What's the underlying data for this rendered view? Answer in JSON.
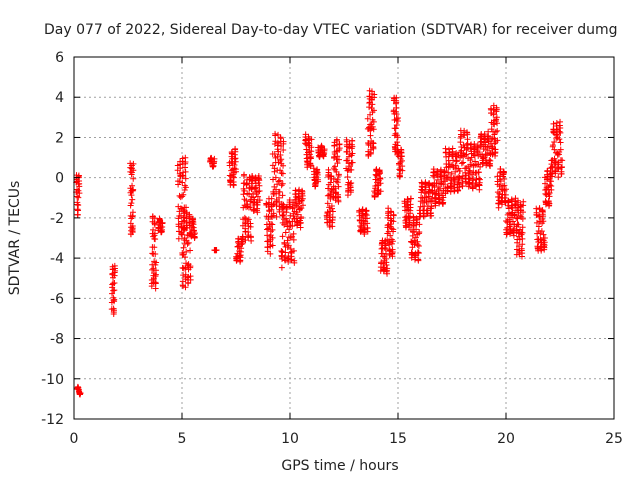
{
  "chart_data": {
    "type": "scatter",
    "title": "Day 077 of 2022, Sidereal Day-to-day VTEC variation (SDTVAR) for receiver dumg",
    "xlabel": "GPS time / hours",
    "ylabel": "SDTVAR / TECUs",
    "xlim": [
      0,
      25
    ],
    "ylim": [
      -12,
      6
    ],
    "xticks": [
      0,
      5,
      10,
      15,
      20,
      25
    ],
    "yticks": [
      -12,
      -10,
      -8,
      -6,
      -4,
      -2,
      0,
      2,
      4,
      6
    ],
    "grid": true,
    "marker": "+",
    "color": "#ff0000",
    "series": [
      {
        "name": "SDTVAR",
        "segments": [
          [
            0.15,
            0.3,
            -10.8,
            -10.4
          ],
          [
            0.1,
            0.25,
            -2,
            0.2
          ],
          [
            1.75,
            1.9,
            -6.8,
            -4.3
          ],
          [
            2.6,
            2.75,
            -3.1,
            0.8
          ],
          [
            3.6,
            3.8,
            -5.6,
            -1.8
          ],
          [
            3.9,
            4.1,
            -2.8,
            -2.0
          ],
          [
            4.8,
            5.2,
            -3.2,
            1.0
          ],
          [
            5.0,
            5.4,
            -5.6,
            -1.4
          ],
          [
            5.4,
            5.6,
            -3.0,
            -2.0
          ],
          [
            6.3,
            6.5,
            0.5,
            1.0
          ],
          [
            6.5,
            6.6,
            -3.6,
            -3.6
          ],
          [
            7.2,
            7.5,
            -0.5,
            1.5
          ],
          [
            7.5,
            7.8,
            -4.2,
            -3.0
          ],
          [
            7.8,
            8.2,
            -3.2,
            0.2
          ],
          [
            8.2,
            8.6,
            -1.8,
            0.2
          ],
          [
            8.9,
            9.2,
            -3.8,
            -1.0
          ],
          [
            9.2,
            9.7,
            -2.0,
            2.2
          ],
          [
            9.6,
            10.2,
            -4.5,
            -1.0
          ],
          [
            10.2,
            10.6,
            -2.5,
            -0.5
          ],
          [
            10.7,
            11.0,
            0.5,
            2.2
          ],
          [
            11.1,
            11.3,
            -0.5,
            0.5
          ],
          [
            11.3,
            11.6,
            1.0,
            1.6
          ],
          [
            11.7,
            12.0,
            -2.5,
            0.5
          ],
          [
            12.0,
            12.3,
            -1.5,
            2.0
          ],
          [
            12.6,
            12.9,
            -1.0,
            2.0
          ],
          [
            13.2,
            13.6,
            -2.8,
            -1.5
          ],
          [
            13.6,
            13.9,
            1.0,
            4.6
          ],
          [
            13.9,
            14.2,
            -1.0,
            0.5
          ],
          [
            14.2,
            14.5,
            -4.8,
            -3.0
          ],
          [
            14.5,
            14.8,
            -4.0,
            -1.5
          ],
          [
            14.8,
            15.0,
            1.0,
            4.1
          ],
          [
            15.0,
            15.2,
            0.0,
            1.5
          ],
          [
            15.3,
            15.6,
            -2.5,
            -1.0
          ],
          [
            15.6,
            16.0,
            -4.2,
            -1.8
          ],
          [
            16.0,
            16.6,
            -2.0,
            -0.2
          ],
          [
            16.6,
            17.2,
            -1.5,
            0.5
          ],
          [
            17.2,
            17.8,
            -0.8,
            1.5
          ],
          [
            17.8,
            18.3,
            -0.5,
            2.4
          ],
          [
            18.3,
            18.8,
            -0.6,
            1.8
          ],
          [
            18.8,
            19.3,
            0.5,
            2.3
          ],
          [
            19.3,
            19.6,
            1.0,
            3.6
          ],
          [
            19.6,
            20.0,
            -1.5,
            0.5
          ],
          [
            20.0,
            20.5,
            -3.0,
            -1.0
          ],
          [
            20.5,
            20.8,
            -4.0,
            -1.0
          ],
          [
            21.4,
            21.8,
            -3.8,
            -1.5
          ],
          [
            21.8,
            22.1,
            -1.5,
            0.5
          ],
          [
            22.1,
            22.6,
            0.0,
            2.8
          ]
        ]
      }
    ]
  }
}
